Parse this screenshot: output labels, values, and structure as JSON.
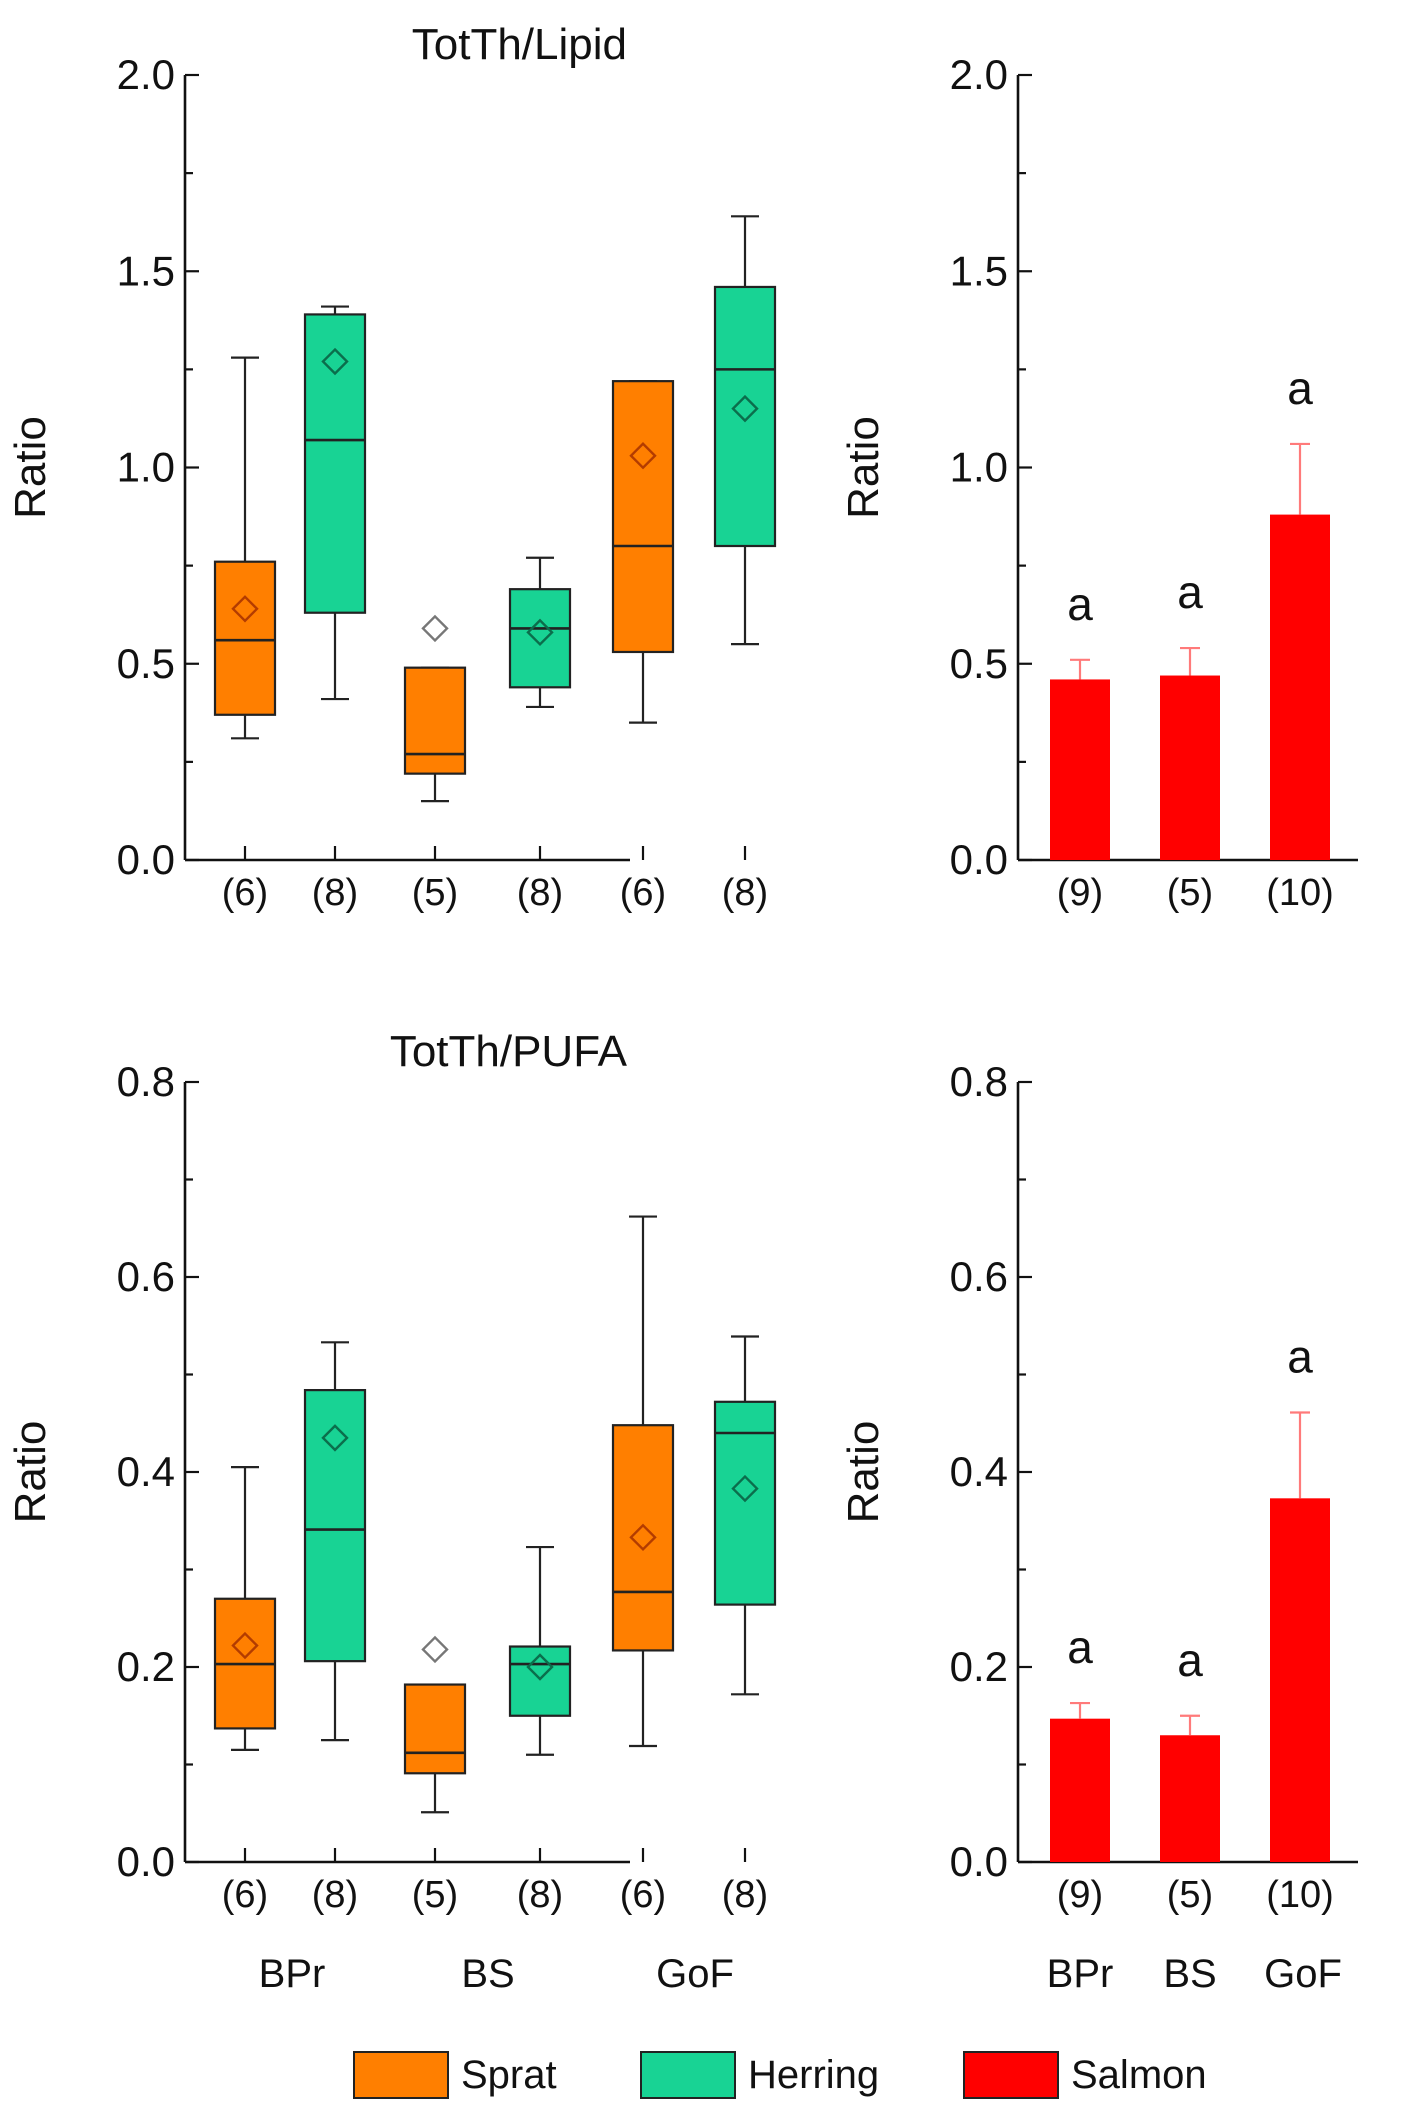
{
  "colors": {
    "sprat": "#ff7f00",
    "herring": "#18d394",
    "salmon": "#ff0000",
    "sprat_mean": "#b33c00",
    "herring_mean": "#0b6e4c",
    "outlier": "#777777"
  },
  "legend": [
    {
      "label": "Sprat",
      "color": "#ff7f00"
    },
    {
      "label": "Herring",
      "color": "#18d394"
    },
    {
      "label": "Salmon",
      "color": "#ff0000"
    }
  ],
  "chart_data": [
    {
      "panel": "top-left",
      "type": "box",
      "title": "TotTh/Lipid",
      "ylabel": "Ratio",
      "ylim": [
        0,
        2.0
      ],
      "yticks": [
        "0.0",
        "0.5",
        "1.0",
        "1.5",
        "2.0"
      ],
      "xgroups": [],
      "boxes": [
        {
          "species": "Sprat",
          "n": "(6)",
          "whisker_low": 0.31,
          "q1": 0.37,
          "median": 0.56,
          "q3": 0.76,
          "whisker_high": 1.28,
          "mean": 0.64,
          "outliers": []
        },
        {
          "species": "Herring",
          "n": "(8)",
          "whisker_low": 0.41,
          "q1": 0.63,
          "median": 1.07,
          "q3": 1.39,
          "whisker_high": 1.41,
          "mean": 1.27,
          "outliers": []
        },
        {
          "species": "Sprat",
          "n": "(5)",
          "whisker_low": 0.15,
          "q1": 0.22,
          "median": 0.27,
          "q3": 0.49,
          "whisker_high": 0.49,
          "mean": null,
          "outliers": [
            0.59
          ]
        },
        {
          "species": "Herring",
          "n": "(8)",
          "whisker_low": 0.39,
          "q1": 0.44,
          "median": 0.59,
          "q3": 0.69,
          "whisker_high": 0.77,
          "mean": 0.58,
          "outliers": []
        },
        {
          "species": "Sprat",
          "n": "(6)",
          "whisker_low": 0.35,
          "q1": 0.53,
          "median": 0.8,
          "q3": 1.22,
          "whisker_high": 1.22,
          "mean": 1.03,
          "outliers": []
        },
        {
          "species": "Herring",
          "n": "(8)",
          "whisker_low": 0.55,
          "q1": 0.8,
          "median": 1.25,
          "q3": 1.46,
          "whisker_high": 1.64,
          "mean": 1.15,
          "outliers": []
        }
      ]
    },
    {
      "panel": "top-right",
      "type": "bar",
      "title": "",
      "ylabel": "Ratio",
      "ylim": [
        0,
        2.0
      ],
      "yticks": [
        "0.0",
        "0.5",
        "1.0",
        "1.5",
        "2.0"
      ],
      "xgroups": [],
      "bars": [
        {
          "n": "(9)",
          "value": 0.46,
          "error": 0.05,
          "letter": "a"
        },
        {
          "n": "(5)",
          "value": 0.47,
          "error": 0.07,
          "letter": "a"
        },
        {
          "n": "(10)",
          "value": 0.88,
          "error": 0.18,
          "letter": "a"
        }
      ]
    },
    {
      "panel": "bottom-left",
      "type": "box",
      "title": "TotTh/PUFA",
      "ylabel": "Ratio",
      "ylim": [
        0,
        0.8
      ],
      "yticks": [
        "0.0",
        "0.2",
        "0.4",
        "0.6",
        "0.8"
      ],
      "xgroups": [
        "BPr",
        "BS",
        "GoF"
      ],
      "boxes": [
        {
          "species": "Sprat",
          "n": "(6)",
          "whisker_low": 0.115,
          "q1": 0.137,
          "median": 0.203,
          "q3": 0.27,
          "whisker_high": 0.405,
          "mean": 0.222,
          "outliers": []
        },
        {
          "species": "Herring",
          "n": "(8)",
          "whisker_low": 0.125,
          "q1": 0.206,
          "median": 0.341,
          "q3": 0.484,
          "whisker_high": 0.533,
          "mean": 0.435,
          "outliers": []
        },
        {
          "species": "Sprat",
          "n": "(5)",
          "whisker_low": 0.051,
          "q1": 0.091,
          "median": 0.112,
          "q3": 0.182,
          "whisker_high": 0.182,
          "mean": null,
          "outliers": [
            0.218
          ]
        },
        {
          "species": "Herring",
          "n": "(8)",
          "whisker_low": 0.11,
          "q1": 0.15,
          "median": 0.203,
          "q3": 0.221,
          "whisker_high": 0.323,
          "mean": 0.2,
          "outliers": []
        },
        {
          "species": "Sprat",
          "n": "(6)",
          "whisker_low": 0.119,
          "q1": 0.217,
          "median": 0.277,
          "q3": 0.448,
          "whisker_high": 0.662,
          "mean": 0.333,
          "outliers": []
        },
        {
          "species": "Herring",
          "n": "(8)",
          "whisker_low": 0.172,
          "q1": 0.264,
          "median": 0.44,
          "q3": 0.472,
          "whisker_high": 0.539,
          "mean": 0.383,
          "outliers": []
        }
      ]
    },
    {
      "panel": "bottom-right",
      "type": "bar",
      "title": "",
      "ylabel": "Ratio",
      "ylim": [
        0,
        0.8
      ],
      "yticks": [
        "0.0",
        "0.2",
        "0.4",
        "0.6",
        "0.8"
      ],
      "xgroups": [
        "BPr",
        "BS",
        "GoF"
      ],
      "bars": [
        {
          "n": "(9)",
          "value": 0.147,
          "error": 0.016,
          "letter": "a"
        },
        {
          "n": "(5)",
          "value": 0.13,
          "error": 0.02,
          "letter": "a"
        },
        {
          "n": "(10)",
          "value": 0.373,
          "error": 0.088,
          "letter": "a"
        }
      ]
    }
  ]
}
